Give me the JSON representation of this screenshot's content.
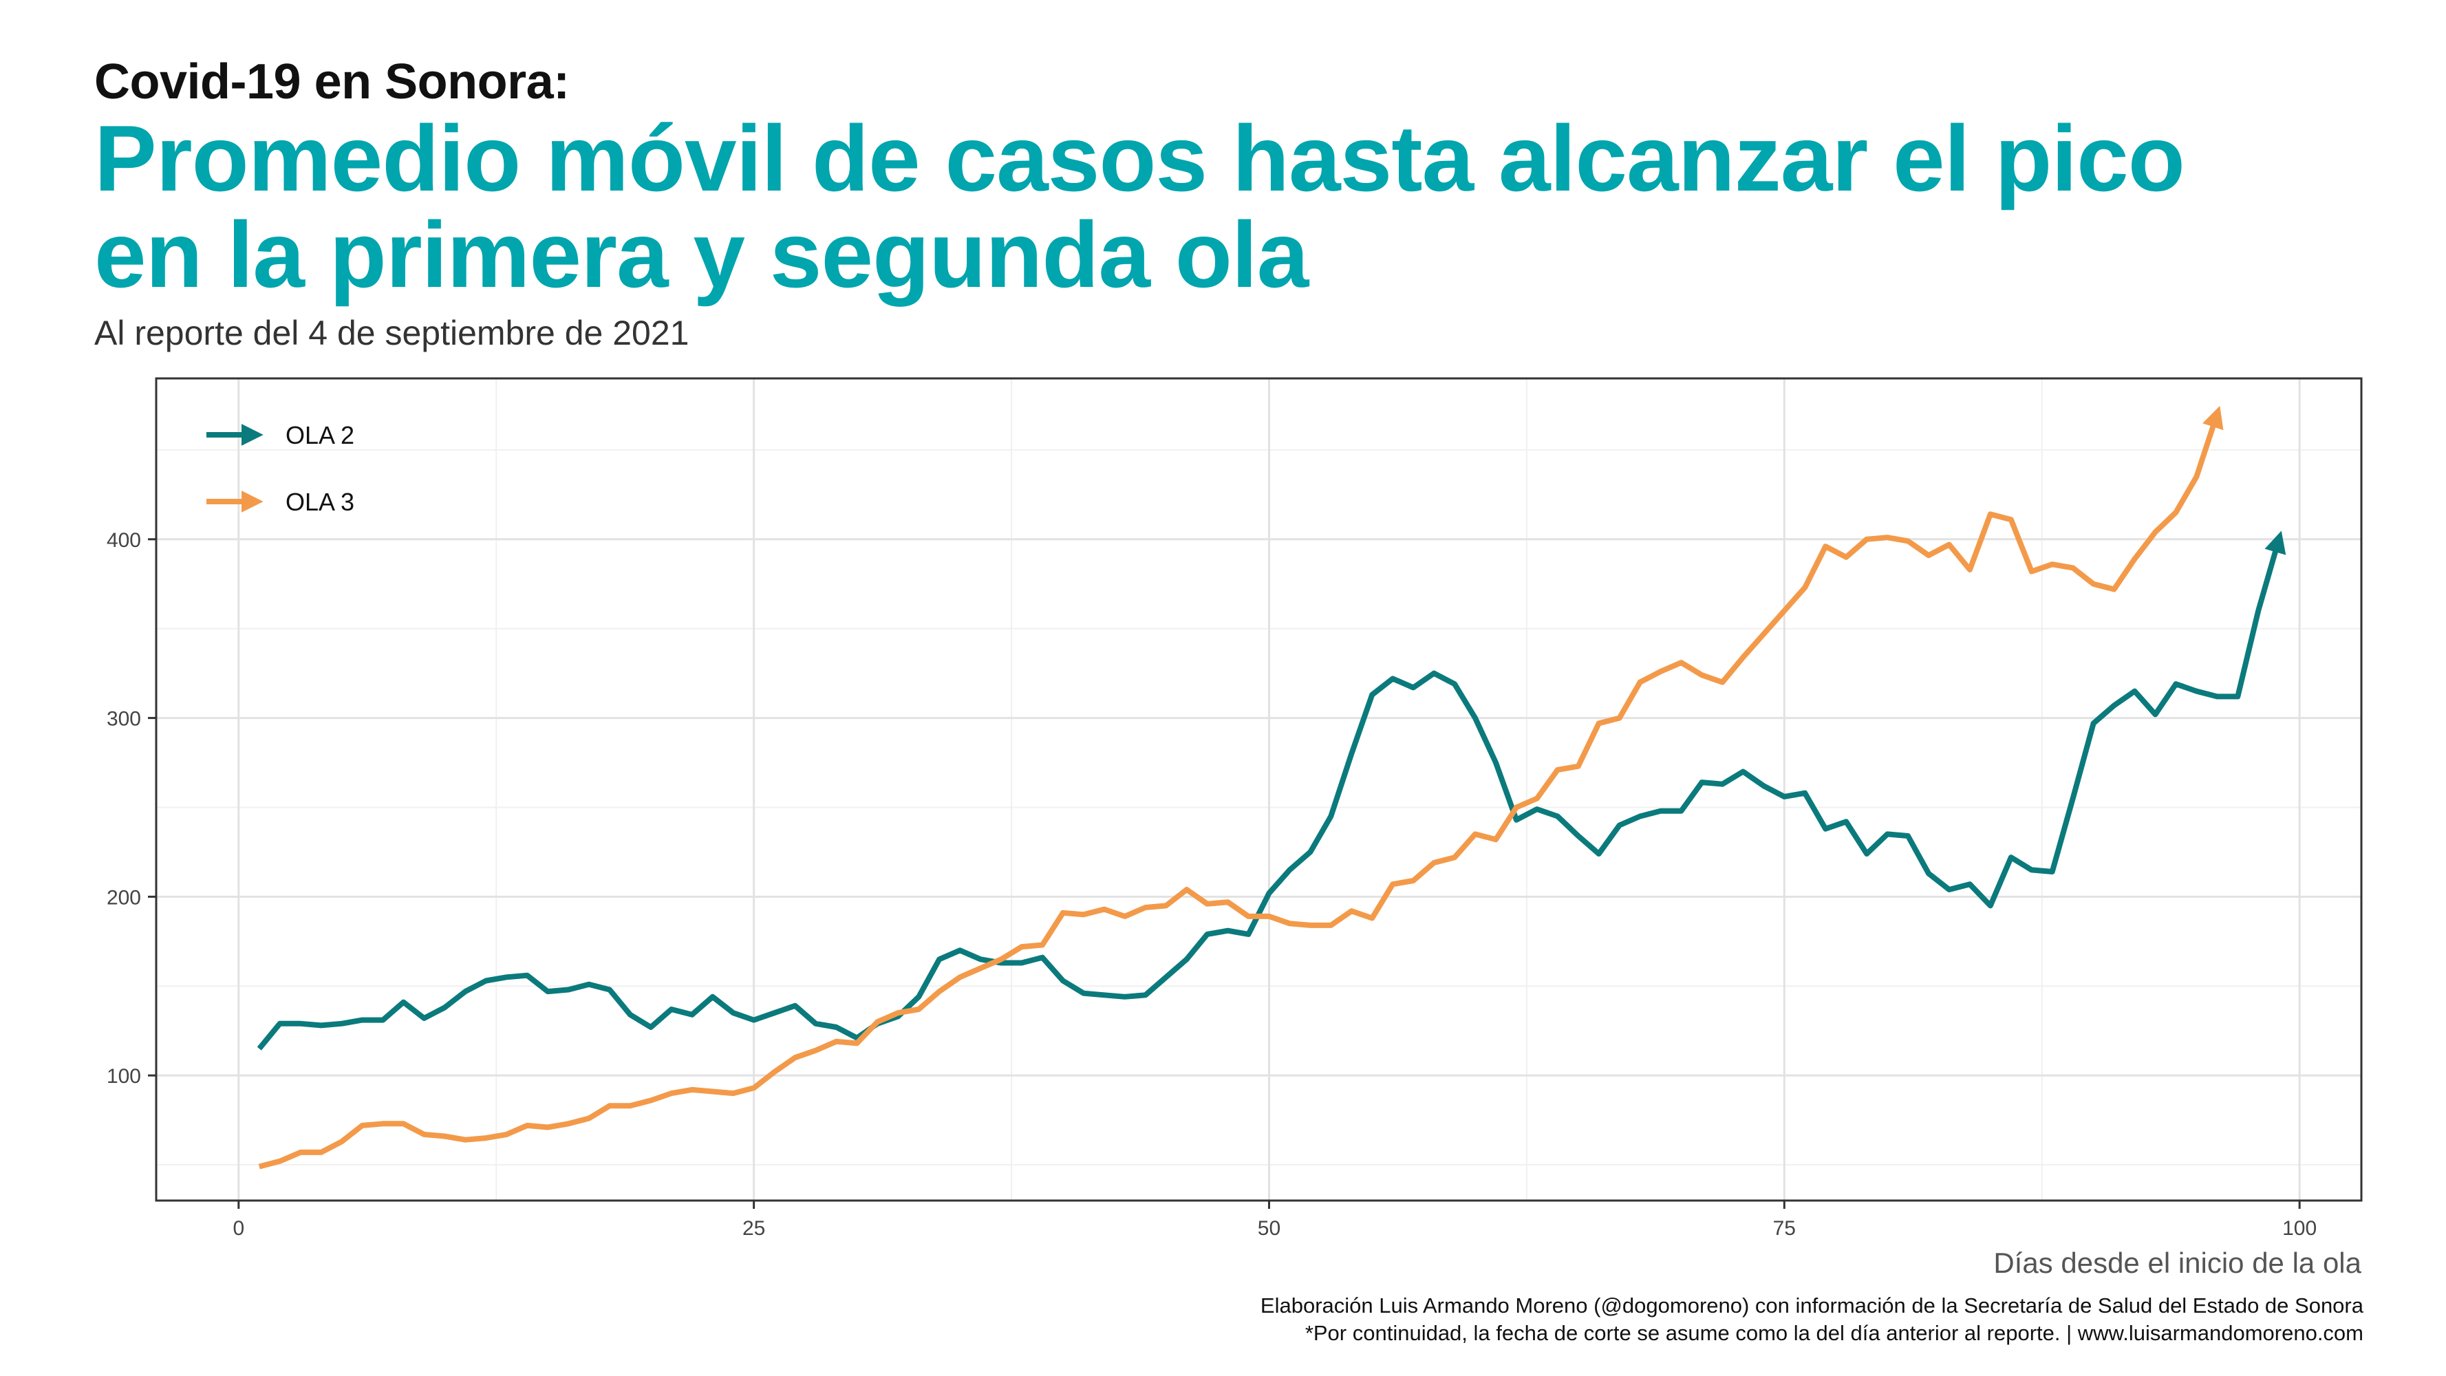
{
  "header": {
    "kicker": "Covid-19 en Sonora:",
    "title_line1": "Promedio móvil de casos hasta alcanzar el pico",
    "title_line2": "en la primera y segunda ola",
    "subtitle": "Al reporte del 4 de septiembre de 2021"
  },
  "footer": {
    "caption_line1": "Elaboración Luis Armando Moreno (@dogomoreno) con información de la Secretaría de Salud del Estado de Sonora",
    "caption_line2": "*Por continuidad, la fecha de corte se asume como la del día anterior al reporte. | www.luisarmandomoreno.com"
  },
  "chart_data": {
    "type": "line",
    "xlabel": "Días desde el inicio de la ola",
    "ylabel": "",
    "xlim": [
      -4,
      103
    ],
    "ylim": [
      30,
      490
    ],
    "x_ticks": [
      0,
      25,
      50,
      75,
      100
    ],
    "y_ticks": [
      100,
      200,
      300,
      400
    ],
    "grid": true,
    "legend_position": "top-left",
    "series": [
      {
        "name": "OLA 2",
        "color": "#0b7a7c",
        "x": [
          1,
          2,
          3,
          4,
          5,
          6,
          7,
          8,
          9,
          10,
          11,
          12,
          13,
          14,
          15,
          16,
          17,
          18,
          19,
          20,
          21,
          22,
          23,
          24,
          25,
          26,
          27,
          28,
          29,
          30,
          31,
          32,
          33,
          34,
          35,
          36,
          37,
          38,
          39,
          40,
          41,
          42,
          43,
          44,
          45,
          46,
          47,
          48,
          49,
          50,
          51,
          52,
          53,
          54,
          55,
          56,
          57,
          58,
          59,
          60,
          61,
          62,
          63,
          64,
          65,
          66,
          67,
          68,
          69,
          70,
          71,
          72,
          73,
          74,
          75,
          76,
          77,
          78,
          79,
          80,
          81,
          82,
          83,
          84,
          85,
          86,
          87,
          88,
          89,
          90,
          91,
          92,
          93,
          94,
          95,
          96,
          97,
          98,
          99
        ],
        "y": [
          115,
          129,
          129,
          128,
          129,
          131,
          131,
          141,
          132,
          138,
          147,
          153,
          155,
          156,
          147,
          148,
          151,
          148,
          134,
          127,
          137,
          134,
          144,
          135,
          131,
          135,
          139,
          129,
          127,
          121,
          129,
          133,
          144,
          165,
          170,
          165,
          163,
          163,
          166,
          153,
          146,
          145,
          144,
          145,
          155,
          165,
          179,
          181,
          179,
          202,
          215,
          225,
          245,
          280,
          313,
          322,
          317,
          325,
          319,
          300,
          275,
          243,
          249,
          245,
          234,
          224,
          240,
          245,
          248,
          248,
          264,
          263,
          270,
          262,
          256,
          258,
          238,
          242,
          224,
          235,
          234,
          213,
          204,
          207,
          195,
          222,
          215,
          214,
          255,
          297,
          307,
          315,
          302,
          319,
          315,
          312,
          312,
          360,
          400
        ]
      },
      {
        "name": "OLA 3",
        "color": "#f39a4a",
        "x": [
          1,
          2,
          3,
          4,
          5,
          6,
          7,
          8,
          9,
          10,
          11,
          12,
          13,
          14,
          15,
          16,
          17,
          18,
          19,
          20,
          21,
          22,
          23,
          24,
          25,
          26,
          27,
          28,
          29,
          30,
          31,
          32,
          33,
          34,
          35,
          36,
          37,
          38,
          39,
          40,
          41,
          42,
          43,
          44,
          45,
          46,
          47,
          48,
          49,
          50,
          51,
          52,
          53,
          54,
          55,
          56,
          57,
          58,
          59,
          60,
          61,
          62,
          63,
          64,
          65,
          66,
          67,
          68,
          69,
          70,
          71,
          72,
          73,
          74,
          75,
          76,
          77,
          78,
          79,
          80,
          81,
          82,
          83,
          84,
          85,
          86,
          87,
          88,
          89,
          90,
          91,
          92,
          93,
          94,
          95,
          96
        ],
        "y": [
          49,
          52,
          57,
          57,
          63,
          72,
          73,
          73,
          67,
          66,
          64,
          65,
          67,
          72,
          71,
          73,
          76,
          83,
          83,
          86,
          90,
          92,
          91,
          90,
          93,
          102,
          110,
          114,
          119,
          118,
          130,
          135,
          137,
          147,
          155,
          160,
          165,
          172,
          173,
          191,
          190,
          193,
          189,
          194,
          195,
          204,
          196,
          197,
          189,
          189,
          185,
          184,
          184,
          192,
          188,
          207,
          209,
          219,
          222,
          235,
          232,
          250,
          255,
          271,
          273,
          297,
          300,
          320,
          326,
          331,
          324,
          320,
          334,
          347,
          360,
          373,
          396,
          390,
          400,
          401,
          399,
          391,
          397,
          383,
          414,
          411,
          382,
          386,
          384,
          375,
          372,
          389,
          404,
          415,
          435,
          470
        ]
      }
    ]
  }
}
